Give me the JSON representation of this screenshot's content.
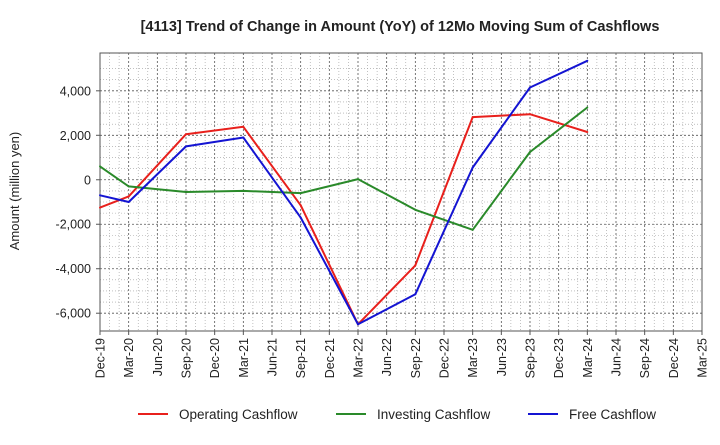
{
  "chart_data": {
    "type": "line",
    "title": "[4113]  Trend of Change in Amount (YoY) of 12Mo Moving Sum of Cashflows",
    "xlabel": "",
    "ylabel": "Amount (million yen)",
    "ylim": [
      -6800,
      5700
    ],
    "yticks": [
      4000,
      2000,
      0,
      -2000,
      -4000,
      -6000
    ],
    "ytick_labels": [
      "4,000",
      "2,000",
      "0",
      "-2,000",
      "-4,000",
      "-6,000"
    ],
    "grid": true,
    "legend_position": "bottom",
    "categories": [
      "Dec-19",
      "Mar-20",
      "Jun-20",
      "Sep-20",
      "Dec-20",
      "Mar-21",
      "Jun-21",
      "Sep-21",
      "Dec-21",
      "Mar-22",
      "Jun-22",
      "Sep-22",
      "Dec-22",
      "Mar-23",
      "Jun-23",
      "Sep-23",
      "Dec-23",
      "Mar-24",
      "Jun-24",
      "Sep-24",
      "Dec-24",
      "Mar-25"
    ],
    "series": [
      {
        "name": "Operating Cashflow",
        "color": "#e8201c",
        "values": [
          -1250,
          -750,
          null,
          2050,
          null,
          2380,
          null,
          -1150,
          null,
          -6500,
          null,
          -3850,
          null,
          2820,
          null,
          2950,
          null,
          2150,
          null,
          null,
          null,
          null
        ]
      },
      {
        "name": "Investing Cashflow",
        "color": "#2a8a2a",
        "values": [
          600,
          -300,
          null,
          -550,
          null,
          -500,
          null,
          -600,
          null,
          30,
          null,
          -1350,
          null,
          -2250,
          null,
          1250,
          null,
          3250,
          null,
          null,
          null,
          null
        ]
      },
      {
        "name": "Free Cashflow",
        "color": "#1414d2",
        "values": [
          -700,
          -1000,
          null,
          1500,
          null,
          1900,
          null,
          -1700,
          null,
          -6500,
          null,
          -5150,
          null,
          550,
          null,
          4150,
          null,
          5350,
          null,
          null,
          null,
          null
        ]
      }
    ]
  }
}
